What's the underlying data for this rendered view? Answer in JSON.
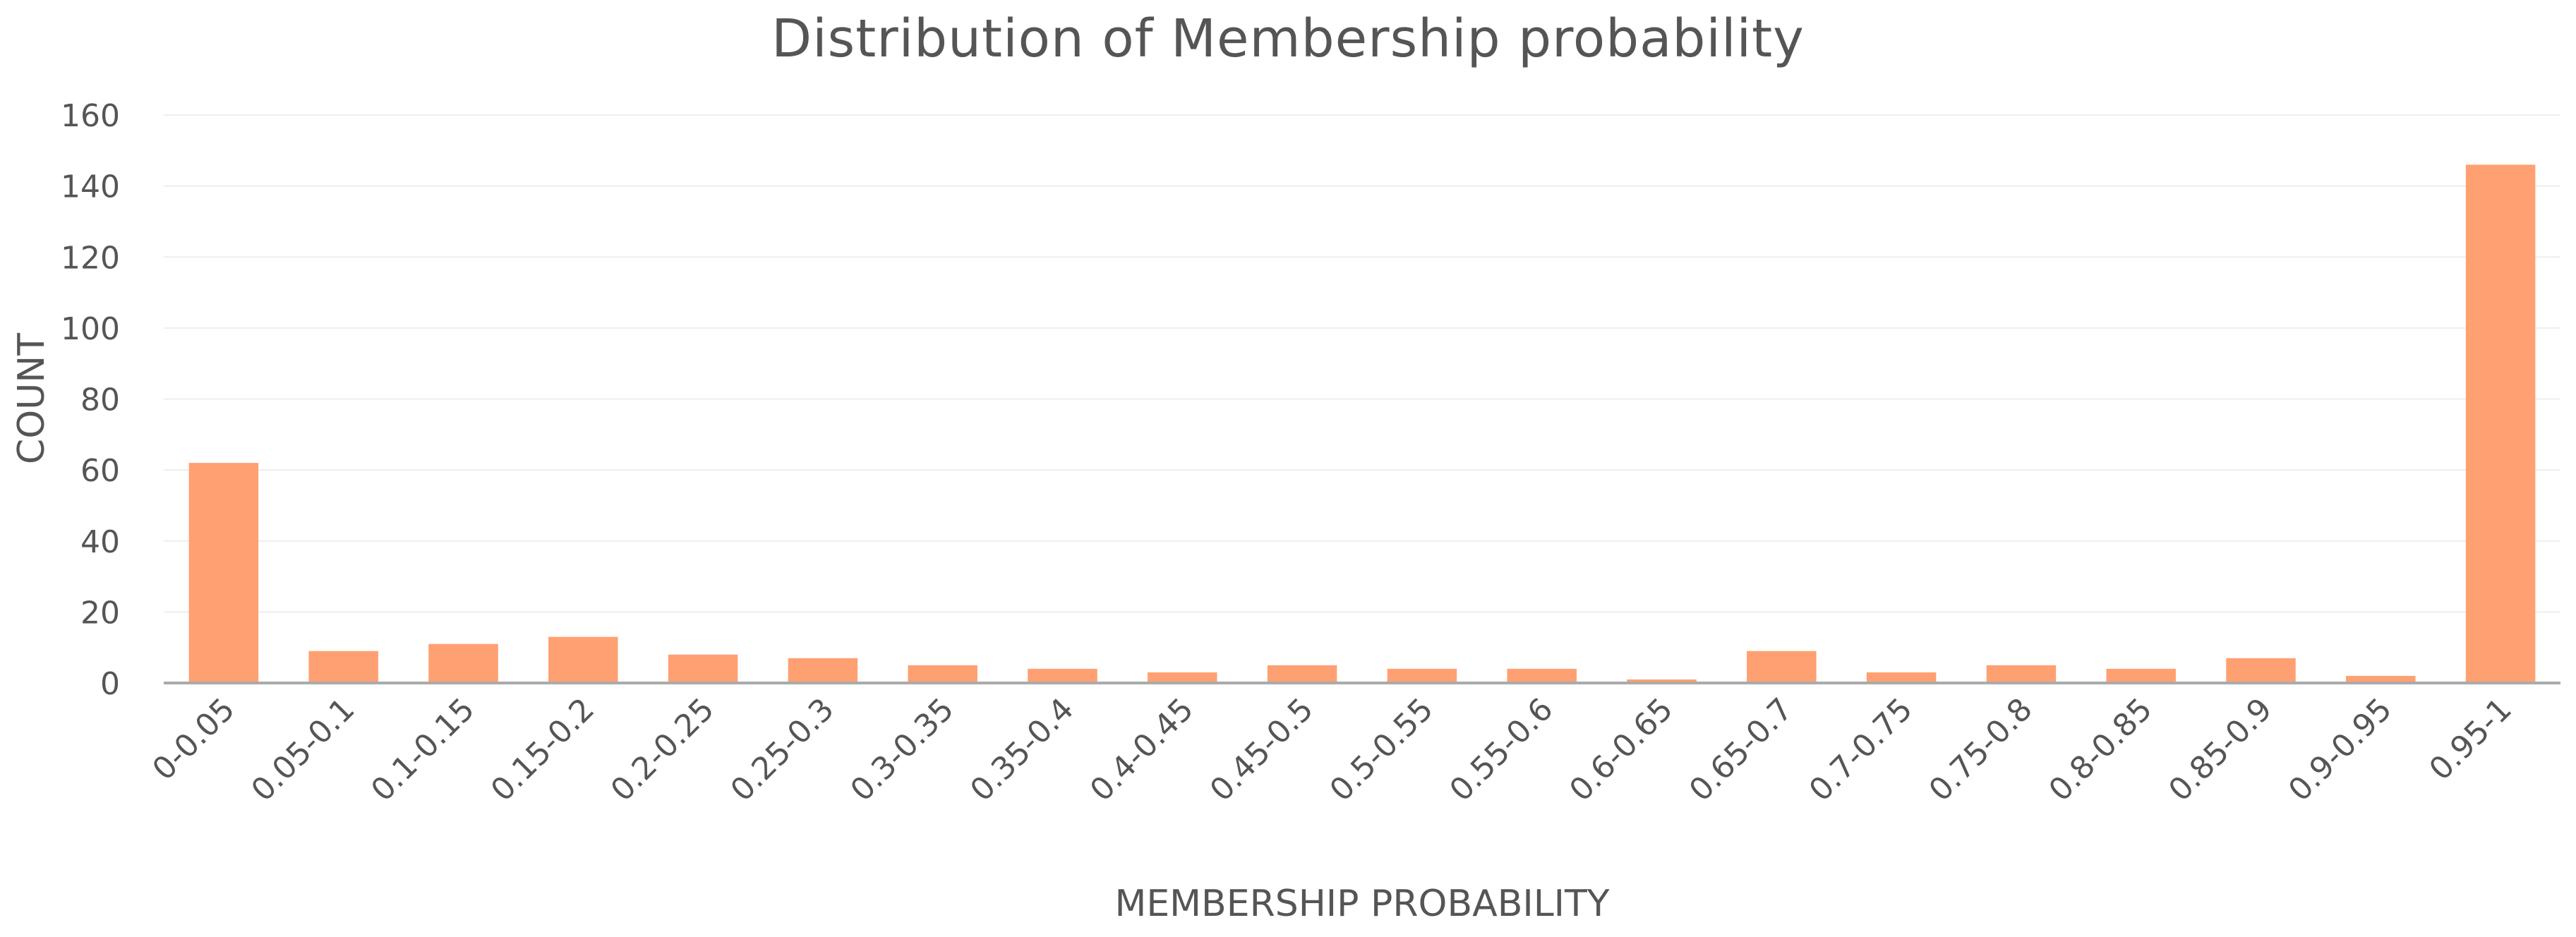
{
  "chart_data": {
    "type": "bar",
    "title": "Distribution of Membership probability",
    "xlabel": "MEMBERSHIP PROBABILITY",
    "ylabel": "COUNT",
    "categories": [
      "0-0.05",
      "0.05-0.1",
      "0.1-0.15",
      "0.15-0.2",
      "0.2-0.25",
      "0.25-0.3",
      "0.3-0.35",
      "0.35-0.4",
      "0.4-0.45",
      "0.45-0.5",
      "0.5-0.55",
      "0.55-0.6",
      "0.6-0.65",
      "0.65-0.7",
      "0.7-0.75",
      "0.75-0.8",
      "0.8-0.85",
      "0.85-0.9",
      "0.9-0.95",
      "0.95-1"
    ],
    "values": [
      62,
      9,
      11,
      13,
      8,
      7,
      5,
      4,
      3,
      5,
      4,
      4,
      1,
      9,
      3,
      5,
      4,
      7,
      2,
      146
    ],
    "ylim": [
      0,
      160
    ],
    "yticks": [
      0,
      20,
      40,
      60,
      80,
      100,
      120,
      140,
      160
    ],
    "grid": true,
    "bar_color": "#FFA072",
    "grid_color": "#eeeeee",
    "axis_color": "#aaaaaa"
  }
}
